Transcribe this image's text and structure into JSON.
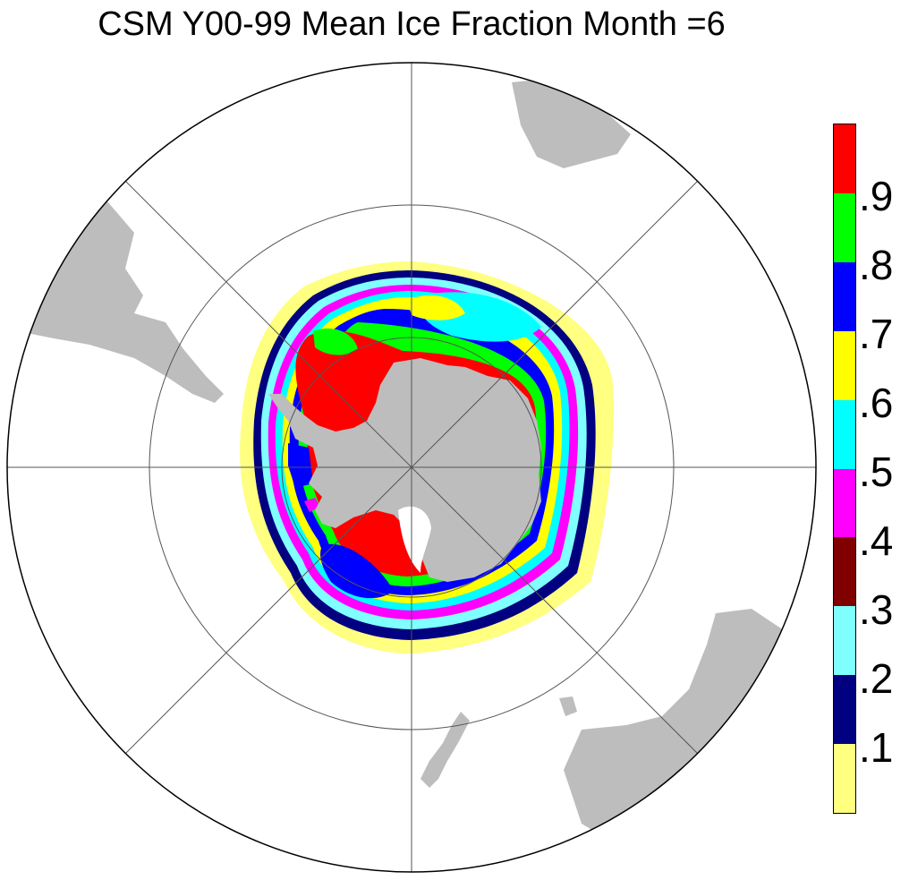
{
  "title": "CSM Y00-99 Mean Ice Fraction Month =6",
  "colors": {
    "land": "#bdbdbd",
    "grid": "#555555",
    "ice": [
      "#ffff80",
      "#000080",
      "#80ffff",
      "#800000",
      "#ff00ff",
      "#00ffff",
      "#ffff00",
      "#0000ff",
      "#00ff00",
      "#ff0000"
    ]
  },
  "legend": {
    "labels": [
      ".9",
      ".8",
      ".7",
      ".6",
      ".5",
      ".4",
      ".3",
      ".2",
      ".1"
    ]
  }
}
